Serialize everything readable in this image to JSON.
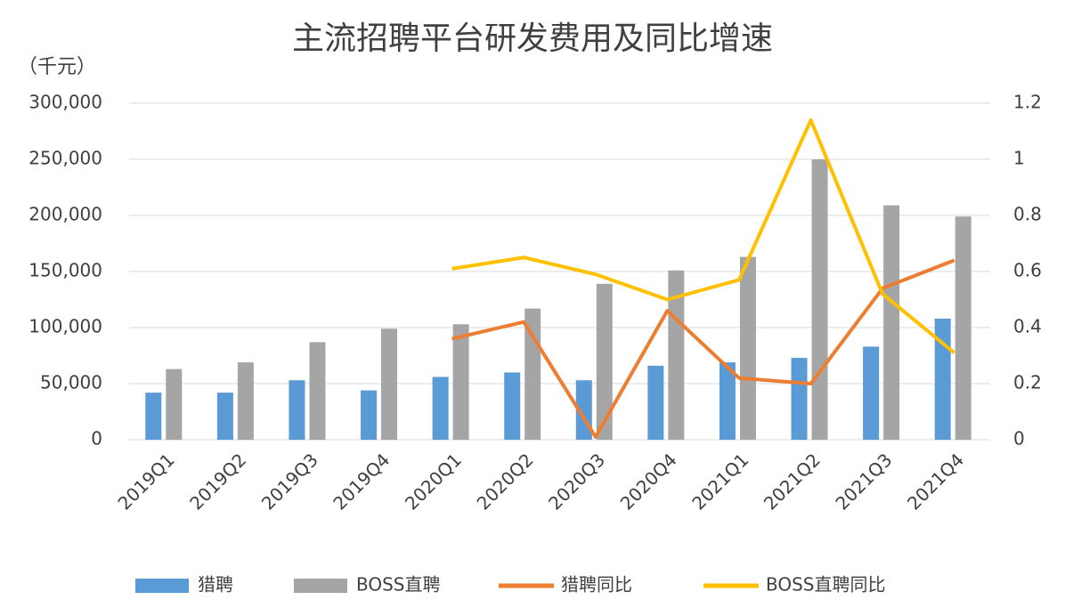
{
  "chart_data": {
    "type": "bar",
    "title": "主流招聘平台研发费用及同比增速",
    "y_label": "（千元）",
    "categories": [
      "2019Q1",
      "2019Q2",
      "2019Q3",
      "2019Q4",
      "2020Q1",
      "2020Q2",
      "2020Q3",
      "2020Q4",
      "2021Q1",
      "2021Q2",
      "2021Q3",
      "2021Q4"
    ],
    "series": [
      {
        "name": "猎聘",
        "type": "bar",
        "color": "#5b9bd5",
        "values": [
          42000,
          42000,
          53000,
          44000,
          56000,
          60000,
          53000,
          66000,
          69000,
          73000,
          83000,
          108000
        ]
      },
      {
        "name": "BOSS直聘",
        "type": "bar",
        "color": "#a5a5a5",
        "values": [
          63000,
          69000,
          87000,
          99000,
          103000,
          117000,
          139000,
          151000,
          163000,
          250000,
          209000,
          199000
        ]
      },
      {
        "name": "猎聘同比",
        "type": "line",
        "axis": "y2",
        "color": "#ed7d31",
        "values": [
          null,
          null,
          null,
          null,
          0.36,
          0.42,
          0.01,
          0.46,
          0.22,
          0.2,
          0.54,
          0.64
        ]
      },
      {
        "name": "BOSS直聘同比",
        "type": "line",
        "axis": "y2",
        "color": "#ffc000",
        "values": [
          null,
          null,
          null,
          null,
          0.61,
          0.65,
          0.59,
          0.5,
          0.57,
          1.14,
          0.52,
          0.31
        ]
      }
    ],
    "ylim": [
      0,
      300000
    ],
    "yticks": [
      0,
      {
        "value": 50000,
        "label": "50,000"
      },
      {
        "value": 100000,
        "label": "100,000"
      },
      {
        "value": 150000,
        "label": "150,000"
      },
      {
        "value": 200000,
        "label": "200,000"
      },
      {
        "value": 250000,
        "label": "250,000"
      },
      {
        "value": 300000,
        "label": "300,000"
      }
    ],
    "y2lim": [
      0,
      1.2
    ],
    "y2ticks": [
      0,
      0.2,
      0.4,
      0.6,
      0.8,
      1,
      1.2
    ],
    "grid": true,
    "legend": "bottom"
  }
}
